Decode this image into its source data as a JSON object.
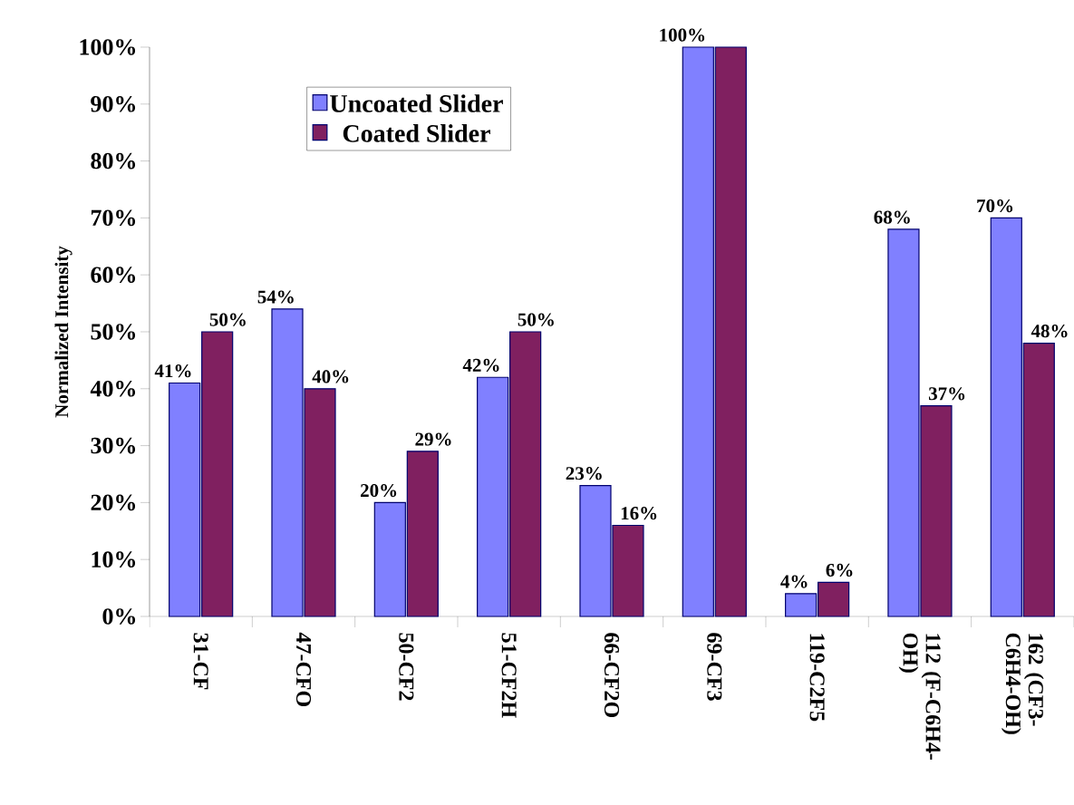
{
  "chart_data": {
    "type": "bar",
    "ylabel": "Normalized Intensity",
    "categories": [
      "31-CF",
      "47-CFO",
      "50-CF2",
      "51-CF2H",
      "66-CF2O",
      "69-CF3",
      "119-C2F5",
      "112 (F-C6H4-OH)",
      "162 (CF3-C6H4-OH)"
    ],
    "series": [
      {
        "name": "Uncoated Slider",
        "color": "#8080ff",
        "values": [
          41,
          54,
          20,
          42,
          23,
          100,
          4,
          68,
          70
        ],
        "value_labels": [
          "41%",
          "54%",
          "20%",
          "42%",
          "23%",
          "100%",
          "4%",
          "68%",
          "70%"
        ]
      },
      {
        "name": "Coated Slider",
        "color": "#802060",
        "values": [
          50,
          40,
          29,
          50,
          16,
          100,
          6,
          37,
          48
        ],
        "value_labels": [
          "50%",
          "40%",
          "29%",
          "50%",
          "16%",
          null,
          "6%",
          "37%",
          "48%"
        ]
      }
    ],
    "ylim": [
      0,
      100
    ],
    "yticks": [
      {
        "value": 0,
        "label": "0%"
      },
      {
        "value": 10,
        "label": "10%"
      },
      {
        "value": 20,
        "label": "20%"
      },
      {
        "value": 30,
        "label": "30%"
      },
      {
        "value": 40,
        "label": "40%"
      },
      {
        "value": 50,
        "label": "50%"
      },
      {
        "value": 60,
        "label": "60%"
      },
      {
        "value": 70,
        "label": "70%"
      },
      {
        "value": 80,
        "label": "80%"
      },
      {
        "value": 90,
        "label": "90%"
      },
      {
        "value": 100,
        "label": "100%"
      }
    ],
    "legend": "top left",
    "grid": false
  }
}
